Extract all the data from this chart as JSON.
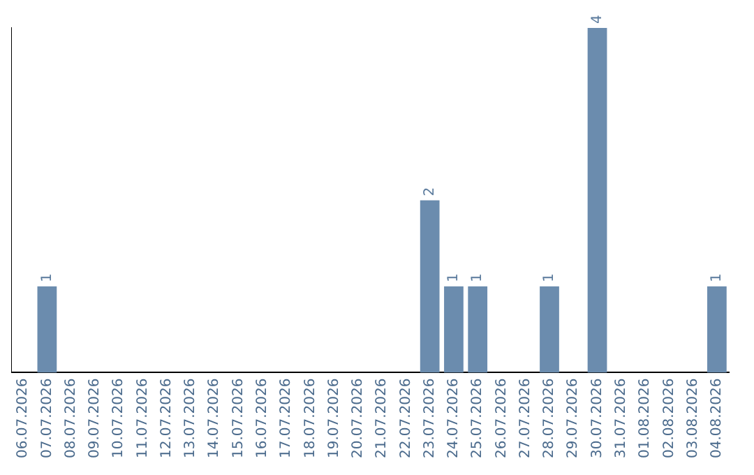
{
  "chart_data": {
    "type": "bar",
    "categories": [
      "06.07.2026",
      "07.07.2026",
      "08.07.2026",
      "09.07.2026",
      "10.07.2026",
      "11.07.2026",
      "12.07.2026",
      "13.07.2026",
      "14.07.2026",
      "15.07.2026",
      "16.07.2026",
      "17.07.2026",
      "18.07.2026",
      "19.07.2026",
      "20.07.2026",
      "21.07.2026",
      "22.07.2026",
      "23.07.2026",
      "24.07.2026",
      "25.07.2026",
      "26.07.2026",
      "27.07.2026",
      "28.07.2026",
      "29.07.2026",
      "30.07.2026",
      "31.07.2026",
      "01.08.2026",
      "02.08.2026",
      "03.08.2026",
      "04.08.2026"
    ],
    "values": [
      0,
      1,
      0,
      0,
      0,
      0,
      0,
      0,
      0,
      0,
      0,
      0,
      0,
      0,
      0,
      0,
      0,
      2,
      1,
      1,
      0,
      0,
      1,
      0,
      4,
      0,
      0,
      0,
      0,
      1
    ],
    "value_labels": [
      null,
      "1",
      null,
      null,
      null,
      null,
      null,
      null,
      null,
      null,
      null,
      null,
      null,
      null,
      null,
      null,
      null,
      "2",
      "1",
      "1",
      null,
      null,
      "1",
      null,
      "4",
      null,
      null,
      null,
      null,
      "1"
    ],
    "color": "#6b8cae",
    "grid": false,
    "legend": false,
    "tick_labels": "x"
  }
}
